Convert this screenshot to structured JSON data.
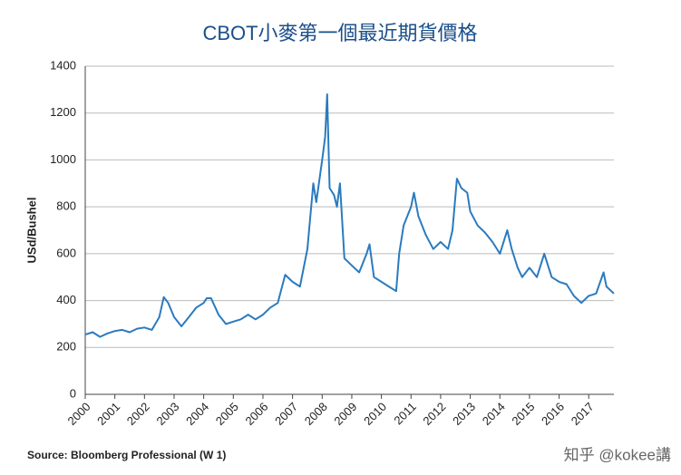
{
  "chart_data": {
    "type": "line",
    "title": "CBOT小麥第一個最近期貨價格",
    "y_label": "USd/Bushel",
    "source": "Source: Bloomberg Professional (W 1)",
    "watermark": "知乎 @kokee講",
    "x": [
      2000,
      2000.25,
      2000.5,
      2000.75,
      2001,
      2001.25,
      2001.5,
      2001.75,
      2002,
      2002.25,
      2002.5,
      2002.65,
      2002.8,
      2003,
      2003.25,
      2003.5,
      2003.75,
      2004,
      2004.1,
      2004.25,
      2004.5,
      2004.75,
      2005,
      2005.25,
      2005.5,
      2005.75,
      2006,
      2006.25,
      2006.5,
      2006.75,
      2007,
      2007.25,
      2007.5,
      2007.7,
      2007.8,
      2008,
      2008.1,
      2008.17,
      2008.25,
      2008.4,
      2008.5,
      2008.6,
      2008.75,
      2009,
      2009.25,
      2009.5,
      2009.6,
      2009.75,
      2010,
      2010.25,
      2010.5,
      2010.6,
      2010.75,
      2011,
      2011.1,
      2011.25,
      2011.5,
      2011.75,
      2012,
      2012.25,
      2012.4,
      2012.55,
      2012.7,
      2012.9,
      2013,
      2013.25,
      2013.5,
      2013.75,
      2014,
      2014.25,
      2014.4,
      2014.6,
      2014.75,
      2015,
      2015.25,
      2015.5,
      2015.75,
      2016,
      2016.25,
      2016.5,
      2016.75,
      2017,
      2017.25,
      2017.5,
      2017.6,
      2017.85
    ],
    "series": [
      {
        "name": "CBOT Wheat",
        "color": "#2a7bbf",
        "values": [
          255,
          265,
          245,
          260,
          270,
          275,
          265,
          280,
          285,
          275,
          330,
          415,
          390,
          330,
          290,
          330,
          370,
          390,
          410,
          410,
          340,
          300,
          310,
          320,
          340,
          320,
          340,
          370,
          390,
          510,
          480,
          460,
          620,
          900,
          820,
          1000,
          1100,
          1280,
          880,
          850,
          800,
          900,
          580,
          550,
          520,
          600,
          640,
          500,
          480,
          460,
          440,
          600,
          720,
          800,
          860,
          760,
          680,
          620,
          650,
          620,
          700,
          920,
          880,
          860,
          780,
          720,
          690,
          650,
          600,
          700,
          620,
          540,
          500,
          540,
          500,
          600,
          500,
          480,
          470,
          420,
          390,
          420,
          430,
          520,
          460,
          430
        ]
      }
    ],
    "xlim": [
      2000,
      2017.85
    ],
    "xticks": [
      2000,
      2001,
      2002,
      2003,
      2004,
      2005,
      2006,
      2007,
      2008,
      2009,
      2010,
      2011,
      2012,
      2013,
      2014,
      2015,
      2016,
      2017
    ],
    "ylim": [
      0,
      1400
    ],
    "yticks": [
      0,
      200,
      400,
      600,
      800,
      1000,
      1200,
      1400
    ],
    "grid": true
  }
}
